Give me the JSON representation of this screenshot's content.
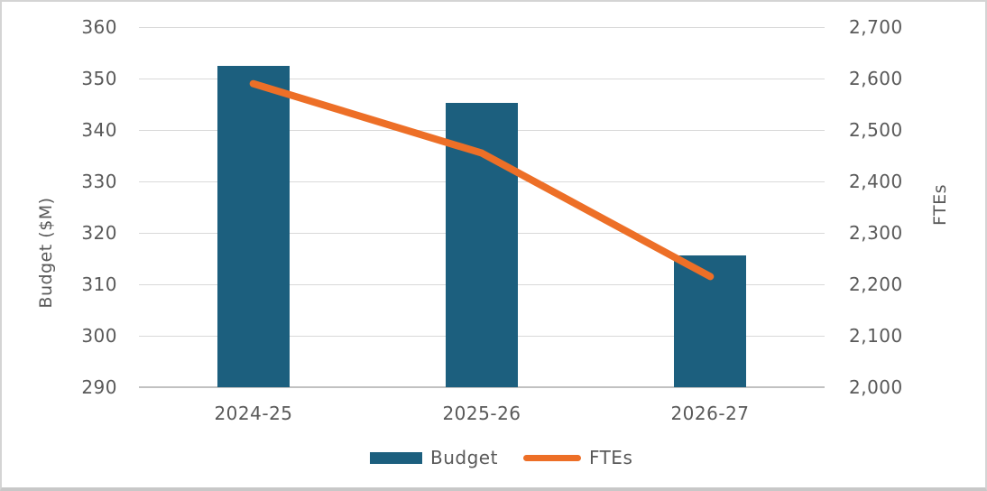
{
  "chart_data": {
    "type": "bar",
    "subtype": "combo-bar-line-dual-axis",
    "categories": [
      "2024-25",
      "2025-26",
      "2026-27"
    ],
    "series": [
      {
        "name": "Budget",
        "chart": "bar",
        "axis": "left",
        "values": [
          352.5,
          345.3,
          315.6
        ],
        "color": "#1C5F7E"
      },
      {
        "name": "FTEs",
        "chart": "line",
        "axis": "right",
        "values": [
          2590,
          2455,
          2215
        ],
        "color": "#ED6F27"
      }
    ],
    "title": "",
    "xlabel": "",
    "left_axis": {
      "title": "Budget ($M)",
      "min": 290,
      "max": 360,
      "step": 10,
      "tick_labels": [
        "360",
        "350",
        "340",
        "330",
        "320",
        "310",
        "300",
        "290"
      ]
    },
    "right_axis": {
      "title": "FTEs",
      "min": 2000,
      "max": 2700,
      "step": 100,
      "tick_labels": [
        "2,700",
        "2,600",
        "2,500",
        "2,400",
        "2,300",
        "2,200",
        "2,100",
        "2,000"
      ]
    },
    "grid": true,
    "legend": {
      "position": "bottom",
      "items": [
        {
          "label": "Budget",
          "marker": "bar-swatch",
          "color": "#1C5F7E"
        },
        {
          "label": "FTEs",
          "marker": "line-swatch",
          "color": "#ED6F27"
        }
      ]
    },
    "styles": {
      "grid_color": "#D9D9D9",
      "axis_line_color": "#C1C1C1",
      "text_color": "#595959",
      "background": "#FFFFFF",
      "border_color": "#D4D4D4"
    }
  }
}
